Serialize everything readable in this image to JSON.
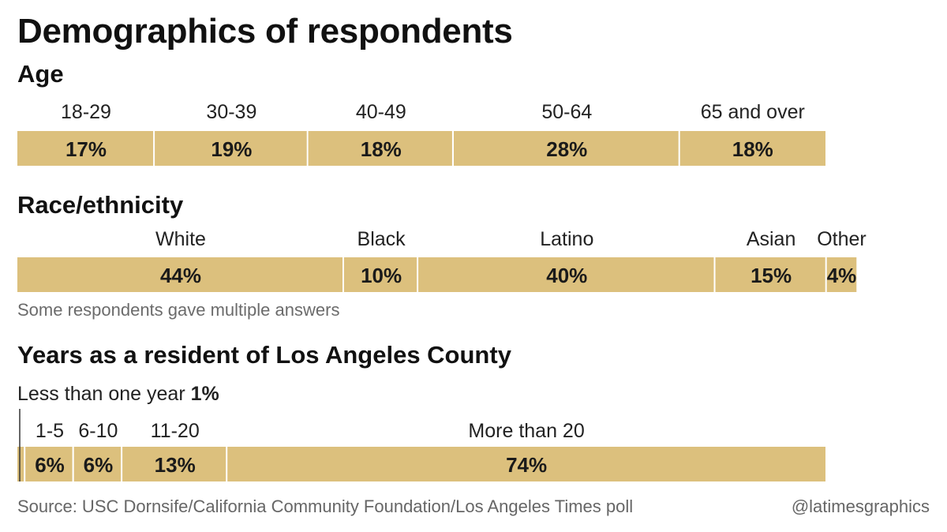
{
  "title": "Demographics of respondents",
  "source": "Source: USC Dornsife/California Community Foundation/Los Angeles Times poll",
  "credit": "@latimesgraphics",
  "colors": {
    "bar": "#dcc07d",
    "separator": "#ffffff"
  },
  "chart_data": [
    {
      "type": "bar",
      "subtype": "stacked-horizontal",
      "title": "Age",
      "categories": [
        "18-29",
        "30-39",
        "40-49",
        "50-64",
        "65 and over"
      ],
      "values": [
        17,
        19,
        18,
        28,
        18
      ],
      "value_labels": [
        "17%",
        "19%",
        "18%",
        "28%",
        "18%"
      ],
      "unit": "%"
    },
    {
      "type": "bar",
      "subtype": "stacked-horizontal",
      "title": "Race/ethnicity",
      "categories": [
        "White",
        "Black",
        "Latino",
        "Asian",
        "Other"
      ],
      "values": [
        44,
        10,
        40,
        15,
        4
      ],
      "value_labels": [
        "44%",
        "10%",
        "40%",
        "15%",
        "4%"
      ],
      "unit": "%",
      "note": "Some respondents gave multiple answers"
    },
    {
      "type": "bar",
      "subtype": "stacked-horizontal",
      "title": "Years as a resident of Los Angeles County",
      "categories": [
        "Less than one year",
        "1-5",
        "6-10",
        "11-20",
        "More than 20"
      ],
      "values": [
        1,
        6,
        6,
        13,
        74
      ],
      "value_labels": [
        "1%",
        "6%",
        "6%",
        "13%",
        "74%"
      ],
      "unit": "%"
    }
  ]
}
